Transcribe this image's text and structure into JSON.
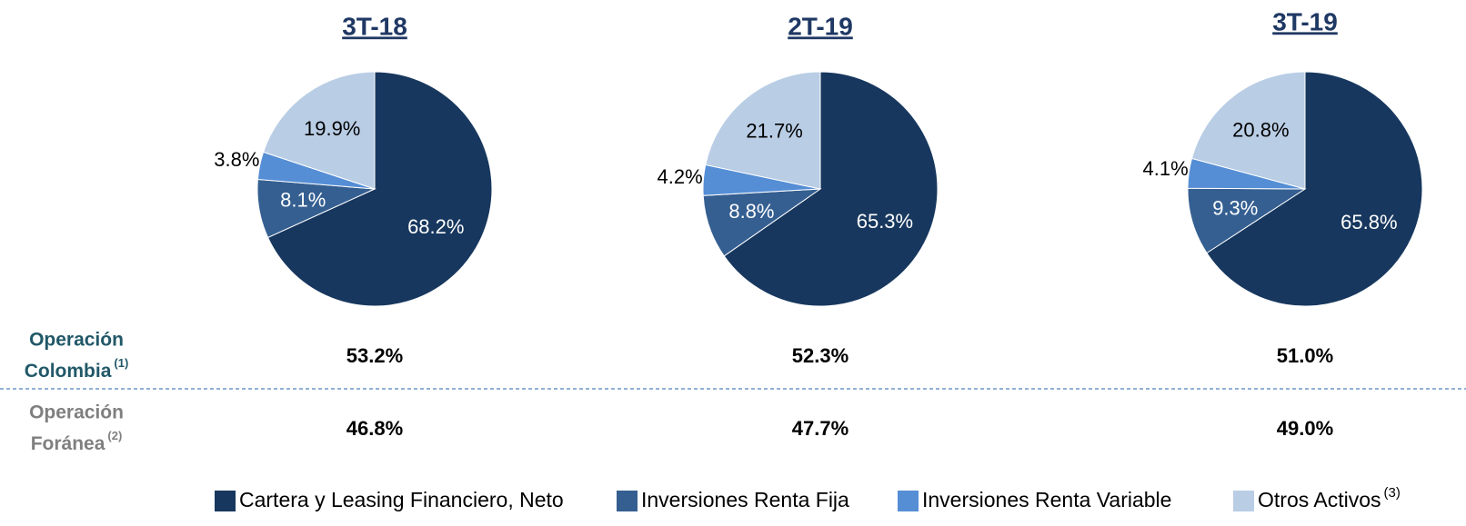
{
  "chart_data": [
    {
      "type": "pie",
      "title": "3T-18",
      "values": [
        68.2,
        8.1,
        3.8,
        19.9
      ],
      "value_labels": [
        "68.2%",
        "8.1%",
        "3.8%",
        "19.9%"
      ],
      "colors": [
        "#17375e",
        "#355f91",
        "#558ed5",
        "#b9cde5"
      ]
    },
    {
      "type": "pie",
      "title": "2T-19",
      "values": [
        65.3,
        8.8,
        4.2,
        21.7
      ],
      "value_labels": [
        "65.3%",
        "8.8%",
        "4.2%",
        "21.7%"
      ],
      "colors": [
        "#17375e",
        "#355f91",
        "#558ed5",
        "#b9cde5"
      ]
    },
    {
      "type": "pie",
      "title": "3T-19",
      "values": [
        65.8,
        9.3,
        4.1,
        20.8
      ],
      "value_labels": [
        "65.8%",
        "9.3%",
        "4.1%",
        "20.8%"
      ],
      "colors": [
        "#17375e",
        "#355f91",
        "#558ed5",
        "#b9cde5"
      ]
    }
  ],
  "rows": [
    {
      "label": [
        "Operación",
        "Colombia"
      ],
      "note": "(1)",
      "color": "#215868",
      "values": [
        53.2,
        52.3,
        51.0
      ],
      "value_labels": [
        "53.2%",
        "52.3%",
        "51.0%"
      ]
    },
    {
      "label": [
        "Operación",
        "Foránea"
      ],
      "note": "(2)",
      "color": "#7f7f7f",
      "values": [
        46.8,
        47.7,
        49.0
      ],
      "value_labels": [
        "46.8%",
        "47.7%",
        "49.0%"
      ]
    }
  ],
  "legend": [
    {
      "name": "Cartera y Leasing Financiero, Neto",
      "color": "#17375e"
    },
    {
      "name": "Inversiones Renta Fija",
      "color": "#355f91"
    },
    {
      "name": "Inversiones Renta Variable",
      "color": "#558ed5"
    },
    {
      "name": "Otros Activos",
      "note": "(3)",
      "color": "#b9cde5"
    }
  ]
}
